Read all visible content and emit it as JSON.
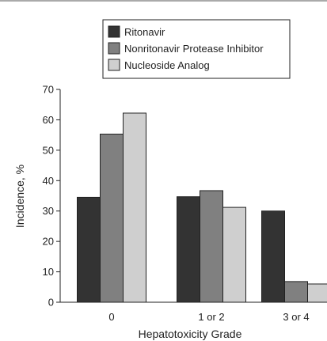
{
  "chart_data": {
    "type": "bar",
    "title": "",
    "xlabel": "Hepatotoxicity Grade",
    "ylabel": "Incidence, %",
    "categories": [
      "0",
      "1 or 2",
      "3 or 4"
    ],
    "ylim": [
      0,
      70
    ],
    "yticks": [
      0,
      10,
      20,
      30,
      40,
      50,
      60,
      70
    ],
    "grid": false,
    "legend_position": "top",
    "series": [
      {
        "name": "Ritonavir",
        "color": "#333333",
        "values": [
          34.5,
          34.7,
          30.0
        ]
      },
      {
        "name": "Nonritonavir Protease Inhibitor",
        "color": "#808080",
        "values": [
          55.3,
          36.7,
          6.8
        ]
      },
      {
        "name": "Nucleoside Analog",
        "color": "#cfcfcf",
        "values": [
          62.2,
          31.2,
          6.0
        ]
      }
    ]
  }
}
